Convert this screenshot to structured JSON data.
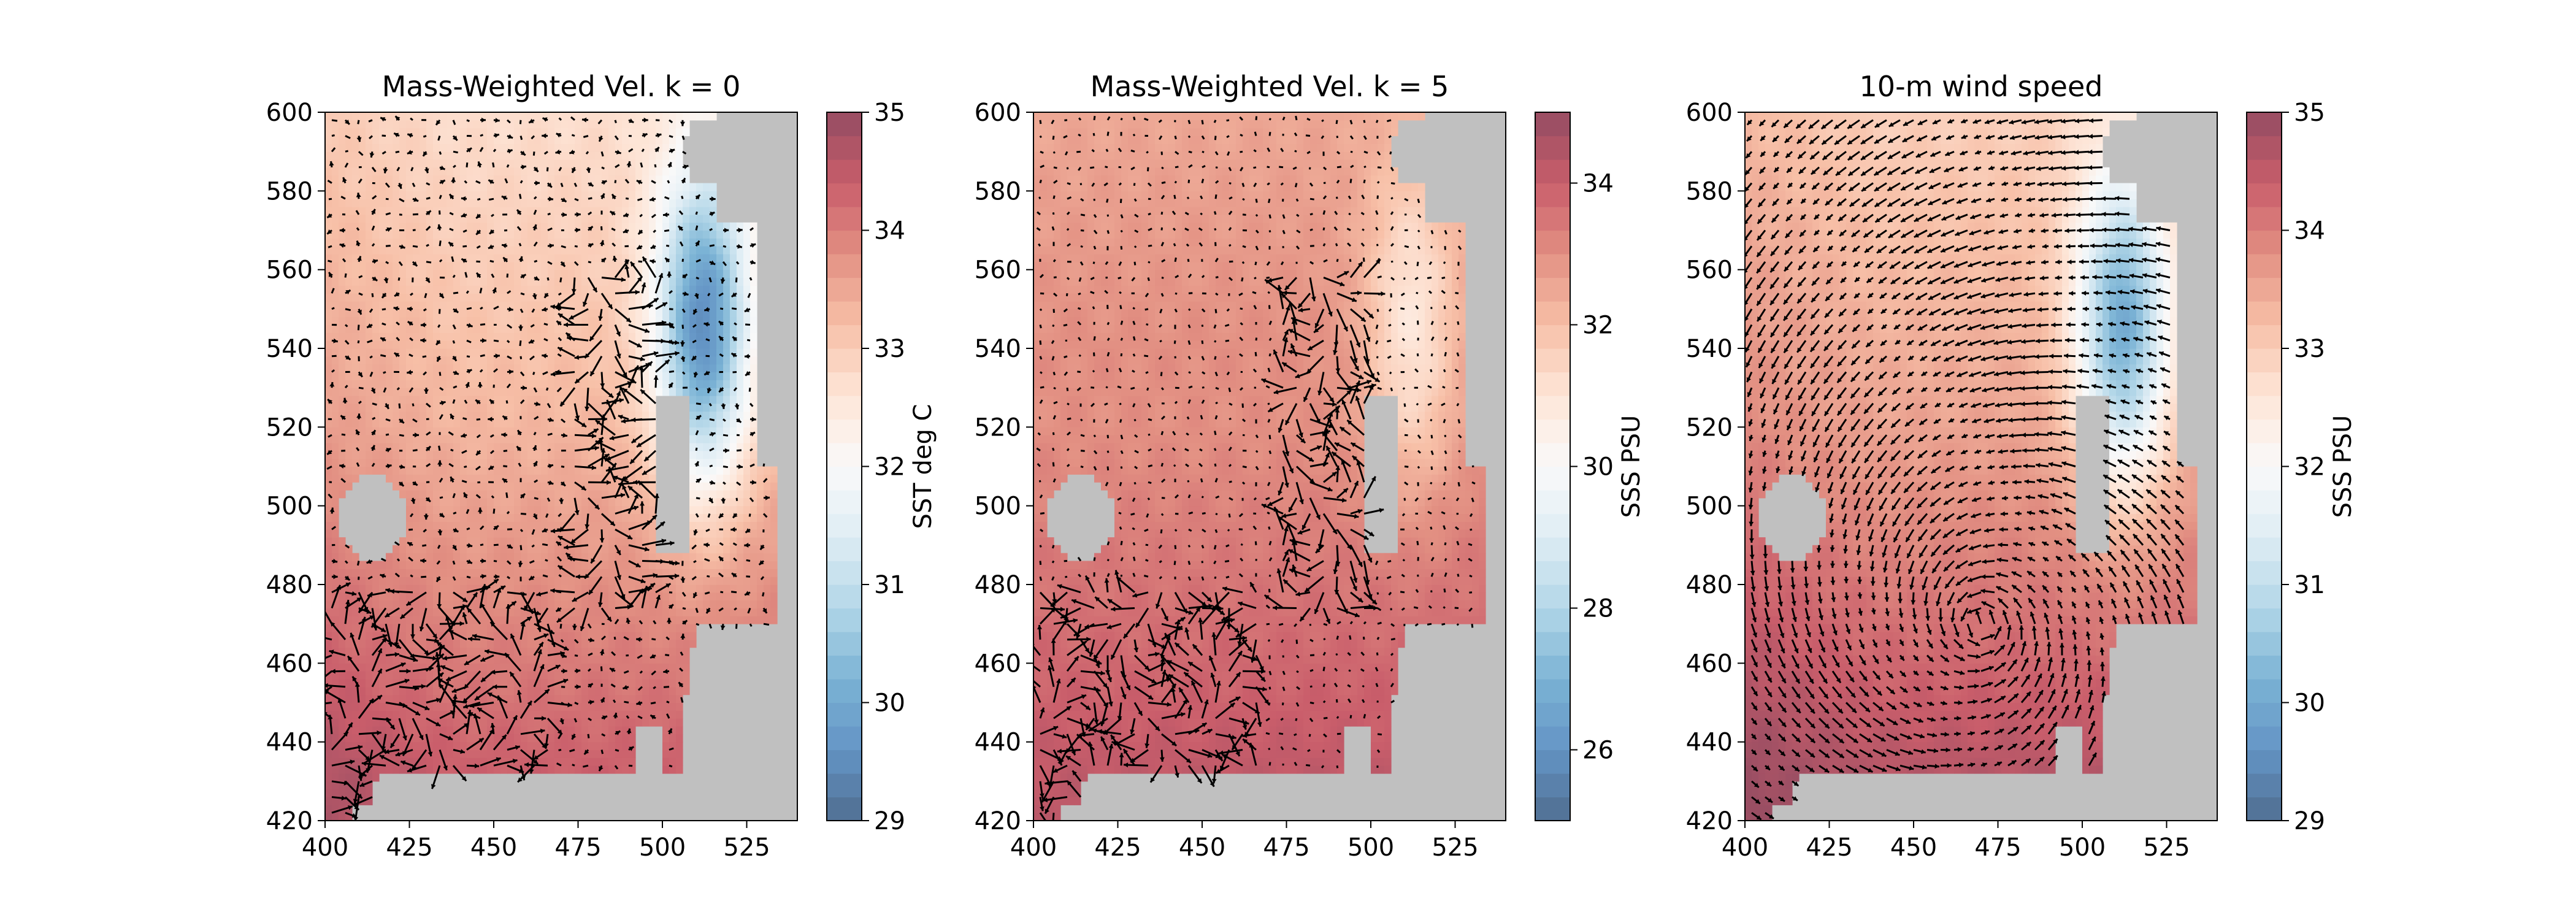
{
  "chart_data": [
    {
      "type": "heatmap",
      "title": "Mass-Weighted Vel. k = 0",
      "xlim": [
        400,
        540
      ],
      "ylim": [
        420,
        600
      ],
      "x_ticks": [
        "400",
        "425",
        "450",
        "475",
        "500",
        "525"
      ],
      "y_ticks": [
        "420",
        "440",
        "460",
        "480",
        "500",
        "520",
        "540",
        "560",
        "580",
        "600"
      ],
      "colorbar": {
        "label": "SST deg C",
        "range": [
          29,
          35
        ],
        "ticks": [
          "29",
          "30",
          "31",
          "32",
          "33",
          "34",
          "35"
        ],
        "colormap": "RdBu_r"
      },
      "overlay": "velocity quiver arrows",
      "field_seed": 0
    },
    {
      "type": "heatmap",
      "title": "Mass-Weighted Vel. k = 5",
      "xlim": [
        400,
        540
      ],
      "ylim": [
        420,
        600
      ],
      "x_ticks": [
        "400",
        "425",
        "450",
        "475",
        "500",
        "525"
      ],
      "y_ticks": [
        "420",
        "440",
        "460",
        "480",
        "500",
        "520",
        "540",
        "560",
        "580",
        "600"
      ],
      "colorbar": {
        "label": "SSS PSU",
        "range": [
          25,
          35
        ],
        "ticks": [
          "26",
          "28",
          "30",
          "32",
          "34"
        ],
        "colormap": "RdBu_r"
      },
      "overlay": "velocity quiver arrows",
      "field_seed": 5
    },
    {
      "type": "heatmap",
      "title": "10-m wind speed",
      "xlim": [
        400,
        540
      ],
      "ylim": [
        420,
        600
      ],
      "x_ticks": [
        "400",
        "425",
        "450",
        "475",
        "500",
        "525"
      ],
      "y_ticks": [
        "420",
        "440",
        "460",
        "480",
        "500",
        "520",
        "540",
        "560",
        "580",
        "600"
      ],
      "colorbar": {
        "label": "SSS PSU",
        "range": [
          29,
          35
        ],
        "ticks": [
          "29",
          "30",
          "31",
          "32",
          "33",
          "34",
          "35"
        ],
        "colormap": "RdBu_r"
      },
      "overlay": "wind quiver arrows",
      "field_seed": 10
    }
  ]
}
